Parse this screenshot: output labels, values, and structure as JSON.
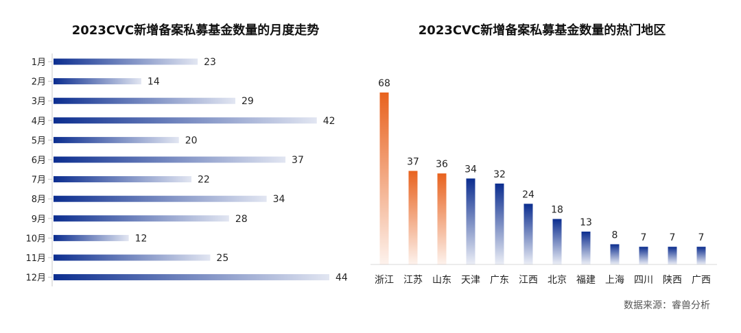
{
  "colors": {
    "blue": "#0b2d8f",
    "orange": "#e8621e",
    "axis": "#c9c9c9"
  },
  "source_note": "数据来源：睿兽分析",
  "chart_data": [
    {
      "type": "bar",
      "orientation": "horizontal",
      "title": "2023CVC新增备案私募基金数量的月度走势",
      "categories": [
        "1月",
        "2月",
        "3月",
        "4月",
        "5月",
        "6月",
        "7月",
        "8月",
        "9月",
        "10月",
        "11月",
        "12月"
      ],
      "values": [
        23,
        14,
        29,
        42,
        20,
        37,
        22,
        34,
        28,
        12,
        25,
        44
      ],
      "xlim": [
        0,
        44
      ],
      "grid": false,
      "color": "#0b2d8f"
    },
    {
      "type": "bar",
      "orientation": "vertical",
      "title": "2023CVC新增备案私募基金数量的热门地区",
      "categories": [
        "浙江",
        "江苏",
        "山东",
        "天津",
        "广东",
        "江西",
        "北京",
        "福建",
        "上海",
        "四川",
        "陕西",
        "广西"
      ],
      "values": [
        68,
        37,
        36,
        34,
        32,
        24,
        18,
        13,
        8,
        7,
        7,
        7
      ],
      "highlight_count": 3,
      "ylim": [
        0,
        68
      ],
      "grid": false,
      "colors": [
        "#e8621e",
        "#0b2d8f"
      ]
    }
  ]
}
